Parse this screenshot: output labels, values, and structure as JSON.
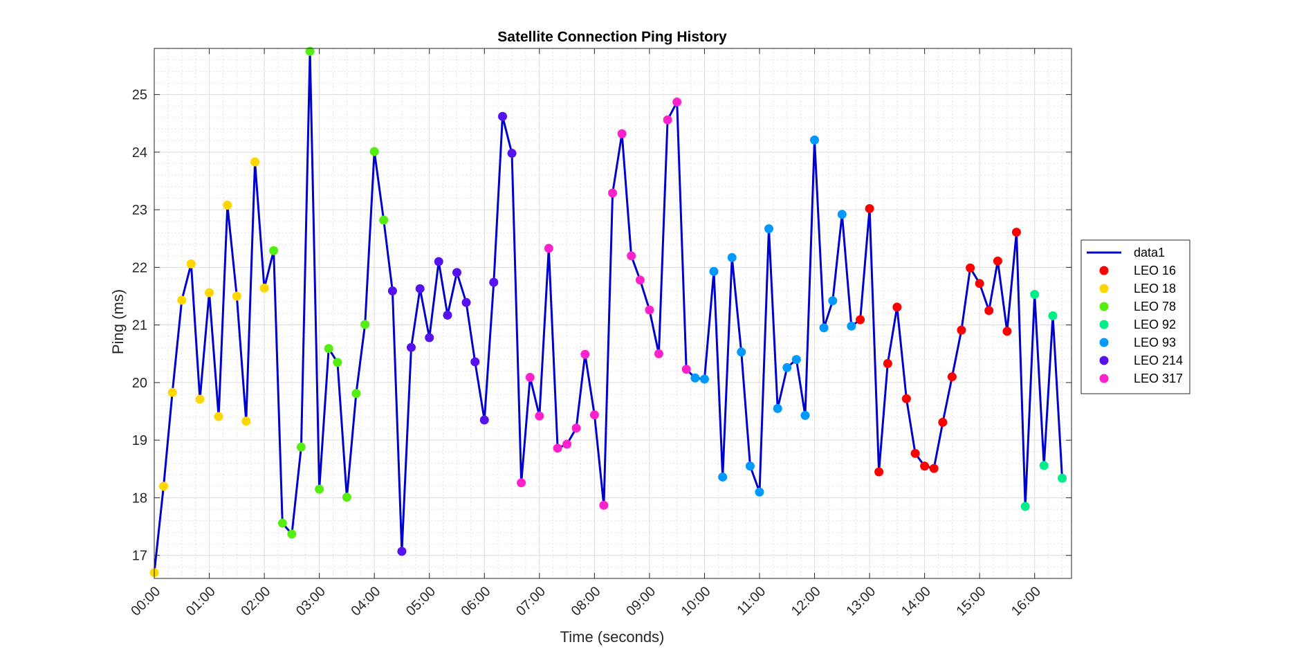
{
  "chart_data": {
    "type": "line",
    "title": "Satellite Connection Ping History",
    "xlabel": "Time (seconds)",
    "ylabel": "Ping (ms)",
    "x_unit": "minutes",
    "xlim": [
      0,
      16.67
    ],
    "ylim": [
      16.6,
      25.8
    ],
    "x_ticks": [
      "00:00",
      "01:00",
      "02:00",
      "03:00",
      "04:00",
      "05:00",
      "06:00",
      "07:00",
      "08:00",
      "09:00",
      "10:00",
      "11:00",
      "12:00",
      "13:00",
      "14:00",
      "15:00",
      "16:00"
    ],
    "y_ticks": [
      17,
      18,
      19,
      20,
      21,
      22,
      23,
      24,
      25
    ],
    "grid": true,
    "minor_grid": true,
    "legend_position": "outside-right",
    "line_series": {
      "name": "data1",
      "color": "#0000CC"
    },
    "groups": [
      {
        "name": "LEO 16",
        "color": "#FF0000"
      },
      {
        "name": "LEO 18",
        "color": "#FFD700"
      },
      {
        "name": "LEO 78",
        "color": "#55EE11"
      },
      {
        "name": "LEO 92",
        "color": "#00EE88"
      },
      {
        "name": "LEO 93",
        "color": "#0099FF"
      },
      {
        "name": "LEO 214",
        "color": "#5511EE"
      },
      {
        "name": "LEO 317",
        "color": "#FF22CC"
      }
    ],
    "points": [
      {
        "x": 0.0,
        "y": 16.7,
        "g": 1
      },
      {
        "x": 0.17,
        "y": 18.2,
        "g": 1
      },
      {
        "x": 0.33,
        "y": 19.83,
        "g": 1
      },
      {
        "x": 0.5,
        "y": 21.43,
        "g": 1
      },
      {
        "x": 0.67,
        "y": 22.06,
        "g": 1
      },
      {
        "x": 0.83,
        "y": 19.71,
        "g": 1
      },
      {
        "x": 1.0,
        "y": 21.56,
        "g": 1
      },
      {
        "x": 1.17,
        "y": 19.41,
        "g": 1
      },
      {
        "x": 1.33,
        "y": 23.08,
        "g": 1
      },
      {
        "x": 1.5,
        "y": 21.5,
        "g": 1
      },
      {
        "x": 1.67,
        "y": 19.33,
        "g": 1
      },
      {
        "x": 1.83,
        "y": 23.83,
        "g": 1
      },
      {
        "x": 2.0,
        "y": 21.64,
        "g": 1
      },
      {
        "x": 2.17,
        "y": 22.29,
        "g": 2
      },
      {
        "x": 2.33,
        "y": 17.56,
        "g": 2
      },
      {
        "x": 2.5,
        "y": 17.37,
        "g": 2
      },
      {
        "x": 2.67,
        "y": 18.88,
        "g": 2
      },
      {
        "x": 2.83,
        "y": 25.75,
        "g": 2
      },
      {
        "x": 3.0,
        "y": 18.15,
        "g": 2
      },
      {
        "x": 3.17,
        "y": 20.59,
        "g": 2
      },
      {
        "x": 3.33,
        "y": 20.35,
        "g": 2
      },
      {
        "x": 3.5,
        "y": 18.01,
        "g": 2
      },
      {
        "x": 3.67,
        "y": 19.81,
        "g": 2
      },
      {
        "x": 3.83,
        "y": 21.01,
        "g": 2
      },
      {
        "x": 4.0,
        "y": 24.01,
        "g": 2
      },
      {
        "x": 4.17,
        "y": 22.82,
        "g": 2
      },
      {
        "x": 4.33,
        "y": 21.59,
        "g": 5
      },
      {
        "x": 4.5,
        "y": 17.07,
        "g": 5
      },
      {
        "x": 4.67,
        "y": 20.61,
        "g": 5
      },
      {
        "x": 4.83,
        "y": 21.63,
        "g": 5
      },
      {
        "x": 5.0,
        "y": 20.78,
        "g": 5
      },
      {
        "x": 5.17,
        "y": 22.1,
        "g": 5
      },
      {
        "x": 5.33,
        "y": 21.17,
        "g": 5
      },
      {
        "x": 5.5,
        "y": 21.91,
        "g": 5
      },
      {
        "x": 5.67,
        "y": 21.39,
        "g": 5
      },
      {
        "x": 5.83,
        "y": 20.36,
        "g": 5
      },
      {
        "x": 6.0,
        "y": 19.35,
        "g": 5
      },
      {
        "x": 6.17,
        "y": 21.74,
        "g": 5
      },
      {
        "x": 6.33,
        "y": 24.62,
        "g": 5
      },
      {
        "x": 6.5,
        "y": 23.98,
        "g": 5
      },
      {
        "x": 6.67,
        "y": 18.26,
        "g": 6
      },
      {
        "x": 6.83,
        "y": 20.09,
        "g": 6
      },
      {
        "x": 7.0,
        "y": 19.42,
        "g": 6
      },
      {
        "x": 7.17,
        "y": 22.33,
        "g": 6
      },
      {
        "x": 7.33,
        "y": 18.86,
        "g": 6
      },
      {
        "x": 7.5,
        "y": 18.93,
        "g": 6
      },
      {
        "x": 7.67,
        "y": 19.21,
        "g": 6
      },
      {
        "x": 7.83,
        "y": 20.49,
        "g": 6
      },
      {
        "x": 8.0,
        "y": 19.44,
        "g": 6
      },
      {
        "x": 8.17,
        "y": 17.87,
        "g": 6
      },
      {
        "x": 8.33,
        "y": 23.29,
        "g": 6
      },
      {
        "x": 8.5,
        "y": 24.32,
        "g": 6
      },
      {
        "x": 8.67,
        "y": 22.2,
        "g": 6
      },
      {
        "x": 8.83,
        "y": 21.78,
        "g": 6
      },
      {
        "x": 9.0,
        "y": 21.26,
        "g": 6
      },
      {
        "x": 9.17,
        "y": 20.5,
        "g": 6
      },
      {
        "x": 9.33,
        "y": 24.56,
        "g": 6
      },
      {
        "x": 9.5,
        "y": 24.87,
        "g": 6
      },
      {
        "x": 9.67,
        "y": 20.23,
        "g": 6
      },
      {
        "x": 9.83,
        "y": 20.08,
        "g": 4
      },
      {
        "x": 10.0,
        "y": 20.06,
        "g": 4
      },
      {
        "x": 10.17,
        "y": 21.93,
        "g": 4
      },
      {
        "x": 10.33,
        "y": 18.36,
        "g": 4
      },
      {
        "x": 10.5,
        "y": 22.17,
        "g": 4
      },
      {
        "x": 10.67,
        "y": 20.53,
        "g": 4
      },
      {
        "x": 10.83,
        "y": 18.55,
        "g": 4
      },
      {
        "x": 11.0,
        "y": 18.1,
        "g": 4
      },
      {
        "x": 11.17,
        "y": 22.67,
        "g": 4
      },
      {
        "x": 11.33,
        "y": 19.55,
        "g": 4
      },
      {
        "x": 11.5,
        "y": 20.26,
        "g": 4
      },
      {
        "x": 11.67,
        "y": 20.4,
        "g": 4
      },
      {
        "x": 11.83,
        "y": 19.43,
        "g": 4
      },
      {
        "x": 12.0,
        "y": 24.21,
        "g": 4
      },
      {
        "x": 12.17,
        "y": 20.95,
        "g": 4
      },
      {
        "x": 12.33,
        "y": 21.42,
        "g": 4
      },
      {
        "x": 12.5,
        "y": 22.92,
        "g": 4
      },
      {
        "x": 12.67,
        "y": 20.98,
        "g": 4
      },
      {
        "x": 12.83,
        "y": 21.09,
        "g": 0
      },
      {
        "x": 13.0,
        "y": 23.02,
        "g": 0
      },
      {
        "x": 13.17,
        "y": 18.45,
        "g": 0
      },
      {
        "x": 13.33,
        "y": 20.33,
        "g": 0
      },
      {
        "x": 13.5,
        "y": 21.31,
        "g": 0
      },
      {
        "x": 13.67,
        "y": 19.72,
        "g": 0
      },
      {
        "x": 13.83,
        "y": 18.77,
        "g": 0
      },
      {
        "x": 14.0,
        "y": 18.55,
        "g": 0
      },
      {
        "x": 14.17,
        "y": 18.51,
        "g": 0
      },
      {
        "x": 14.33,
        "y": 19.31,
        "g": 0
      },
      {
        "x": 14.5,
        "y": 20.1,
        "g": 0
      },
      {
        "x": 14.67,
        "y": 20.91,
        "g": 0
      },
      {
        "x": 14.83,
        "y": 21.99,
        "g": 0
      },
      {
        "x": 15.0,
        "y": 21.72,
        "g": 0
      },
      {
        "x": 15.17,
        "y": 21.25,
        "g": 0
      },
      {
        "x": 15.33,
        "y": 22.11,
        "g": 0
      },
      {
        "x": 15.5,
        "y": 20.89,
        "g": 0
      },
      {
        "x": 15.67,
        "y": 22.61,
        "g": 0
      },
      {
        "x": 15.83,
        "y": 17.85,
        "g": 3
      },
      {
        "x": 16.0,
        "y": 21.53,
        "g": 3
      },
      {
        "x": 16.17,
        "y": 18.56,
        "g": 3
      },
      {
        "x": 16.33,
        "y": 21.16,
        "g": 3
      },
      {
        "x": 16.5,
        "y": 18.34,
        "g": 3
      }
    ]
  }
}
